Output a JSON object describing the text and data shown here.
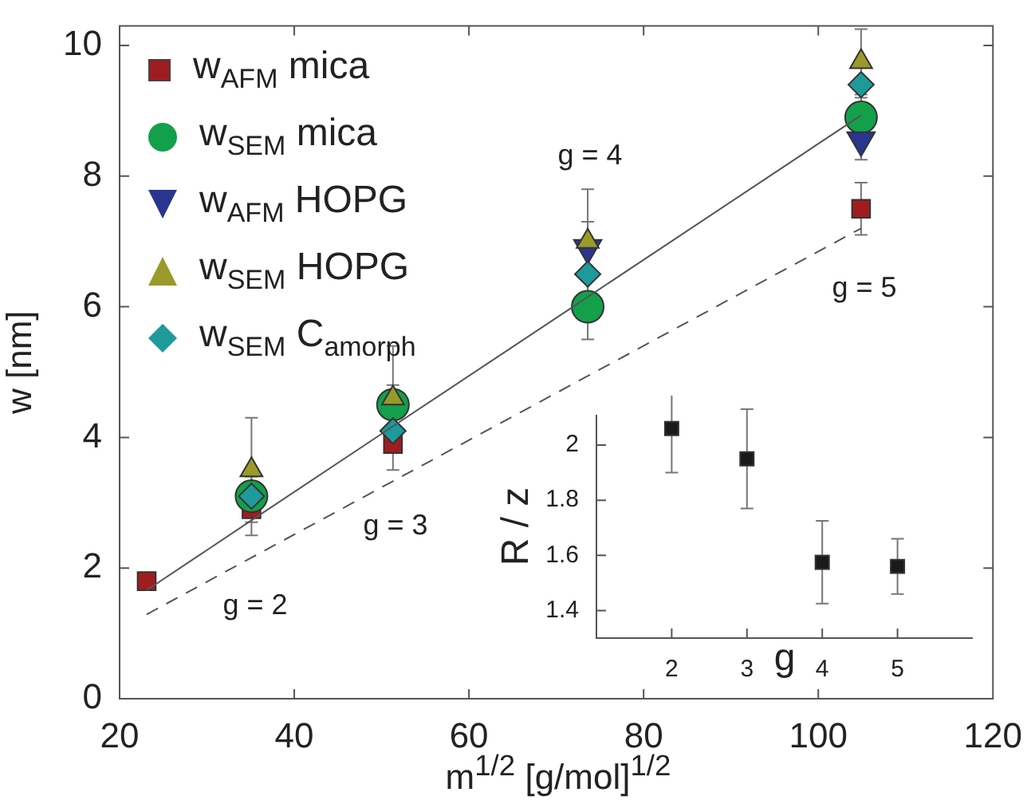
{
  "chart_data": [
    {
      "type": "scatter",
      "xlabel": "m$^{1/2}$ [g/mol]$^{1/2}$",
      "ylabel": "w [nm]",
      "x": [
        23.1,
        35.1,
        51.3,
        73.6,
        104.9
      ],
      "xlim": [
        20,
        120
      ],
      "xticks": [
        20,
        40,
        60,
        80,
        100,
        120
      ],
      "ylim": [
        0,
        10.3
      ],
      "yticks": [
        0,
        2,
        4,
        6,
        8,
        10
      ],
      "legend": "top left",
      "series": [
        {
          "name": "w$_{AFM}$ mica",
          "color": "#a01c20",
          "marker": "square",
          "values": [
            1.8,
            2.9,
            3.9,
            null,
            7.5
          ],
          "errors": [
            null,
            0.4,
            0.4,
            null,
            0.4
          ]
        },
        {
          "name": "w$_{SEM}$ mica",
          "color": "#13a04a",
          "marker": "circle",
          "values": [
            null,
            3.1,
            4.5,
            6.0,
            8.9
          ],
          "errors": [
            null,
            0.3,
            0.3,
            0.5,
            0.3
          ]
        },
        {
          "name": "w$_{AFM}$ HOPG",
          "color": "#2a3590",
          "marker": "triangle-down",
          "values": [
            null,
            null,
            null,
            6.9,
            8.55
          ],
          "errors": [
            null,
            null,
            null,
            0.4,
            0.3
          ]
        },
        {
          "name": "w$_{SEM}$ HOPG",
          "color": "#9a9a2a",
          "marker": "triangle",
          "values": [
            null,
            3.5,
            4.6,
            7.0,
            9.75
          ],
          "errors": [
            null,
            0.8,
            0.8,
            0.8,
            0.5
          ]
        },
        {
          "name": "w$_{SEM}$ C$_{amorph}$",
          "color": "#1e9a9a",
          "marker": "diamond",
          "values": [
            null,
            3.1,
            4.1,
            6.5,
            9.4
          ]
        },
        {
          "type": "line",
          "color": "#555555",
          "line_style": "solid",
          "marker": "none",
          "values": [
            1.66,
            2.73,
            4.17,
            6.15,
            8.93
          ]
        },
        {
          "type": "line",
          "color": "#555555",
          "line_style": "dashed",
          "marker": "none",
          "values": [
            1.29,
            2.16,
            3.33,
            4.94,
            7.2
          ]
        }
      ],
      "annotations": [
        "g = 2",
        "g = 3",
        "g = 4",
        "g = 5"
      ]
    },
    {
      "type": "scatter",
      "xlabel": "g",
      "ylabel": "R / z",
      "x": [
        2,
        3,
        4,
        5
      ],
      "values": [
        2.06,
        1.95,
        1.575,
        1.56
      ],
      "errors": [
        0.16,
        0.18,
        0.15,
        0.1
      ],
      "color": "#1a1a1a",
      "marker": "square",
      "xlim": [
        1,
        6
      ],
      "xticks": [
        2,
        3,
        4,
        5
      ],
      "ylim": [
        1.3,
        2.11
      ],
      "yticks": [
        1.4,
        1.6,
        1.8,
        2
      ]
    }
  ]
}
